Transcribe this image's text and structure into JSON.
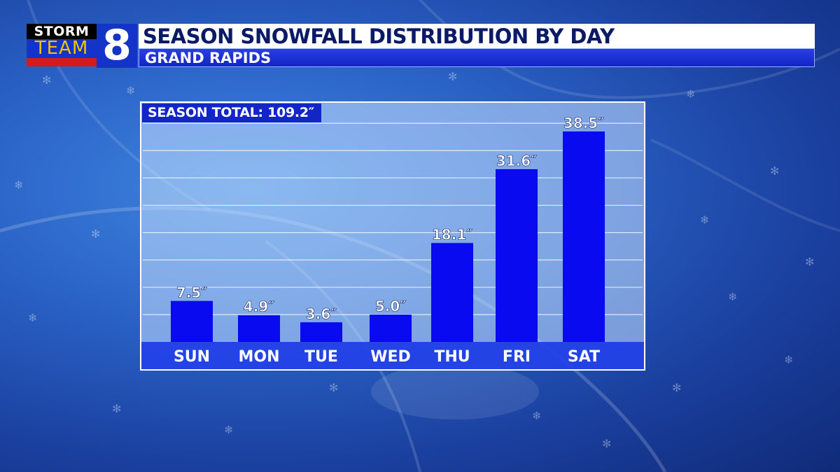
{
  "header": {
    "logo_top": "STORM",
    "logo_middle": "TEAM",
    "logo_number": "8",
    "title": "SEASON SNOWFALL DISTRIBUTION BY DAY",
    "subtitle": "GRAND RAPIDS"
  },
  "colors": {
    "bar": "#0a0af0",
    "title_text": "#0b1a66",
    "accent_blue": "#1226c8",
    "logo_red": "#d41a1a",
    "logo_gold": "#f3c200"
  },
  "chart_data": {
    "type": "bar",
    "title": "SEASON TOTAL: 109.2″",
    "categories": [
      "SUN",
      "MON",
      "TUE",
      "WED",
      "THU",
      "FRI",
      "SAT"
    ],
    "values": [
      7.5,
      4.9,
      3.6,
      5.0,
      18.1,
      31.6,
      38.5
    ],
    "value_labels": [
      "7.5″",
      "4.9″",
      "3.6″",
      "5.0″",
      "18.1″",
      "31.6″",
      "38.5″"
    ],
    "ylim": [
      0,
      44
    ],
    "grid": true,
    "xlabel": "",
    "ylabel": ""
  }
}
